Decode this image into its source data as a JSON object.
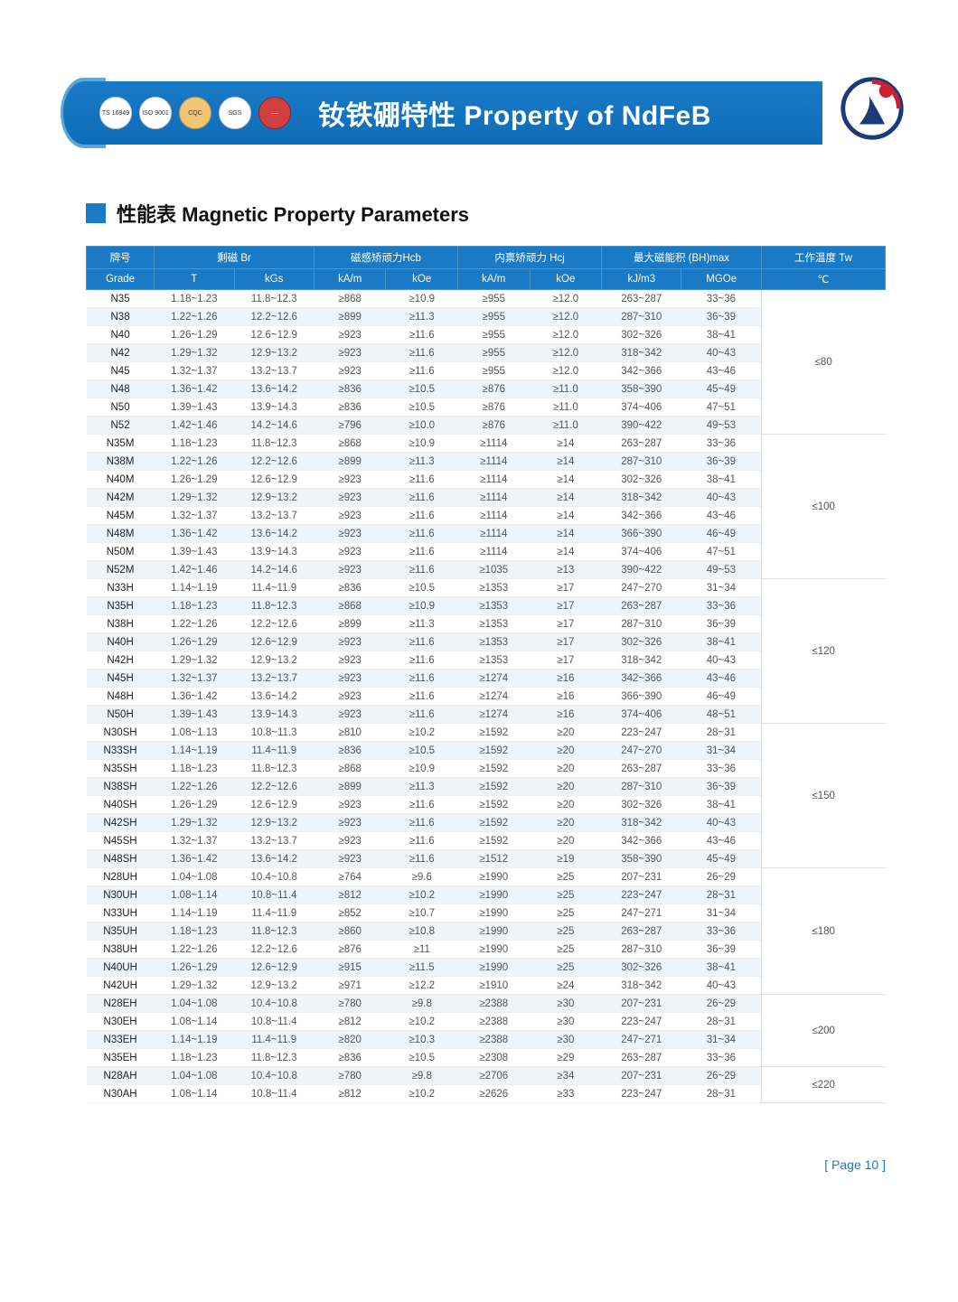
{
  "banner": {
    "title_cn": "钕铁硼特性",
    "title_en": "Property of NdFeB",
    "badges": [
      "TS 16949",
      "ISO 9001",
      "CQC",
      "SGS",
      "—"
    ]
  },
  "section_title_cn": "性能表",
  "section_title_en": "Magnetic Property Parameters",
  "footer": {
    "label": "Page",
    "number": "10"
  },
  "headers": {
    "grade_cn": "牌号",
    "grade_en": "Grade",
    "br_cn": "剩磁 Br",
    "t": "T",
    "kgs": "kGs",
    "hcb_cn": "磁感矫顽力Hcb",
    "kam": "kA/m",
    "koe": "kOe",
    "hcj_cn": "内禀矫顽力 Hcj",
    "bhmax_cn": "最大磁能积 (BH)max",
    "kjm3": "kJ/m3",
    "mgoe": "MGOe",
    "tw_cn": "工作温度 Tw",
    "celsius": "℃"
  },
  "groups": [
    {
      "tw": "≤80",
      "rows": [
        [
          "N35",
          "1.18~1.23",
          "11.8~12.3",
          "≥868",
          "≥10.9",
          "≥955",
          "≥12.0",
          "263~287",
          "33~36"
        ],
        [
          "N38",
          "1.22~1.26",
          "12.2~12.6",
          "≥899",
          "≥11.3",
          "≥955",
          "≥12.0",
          "287~310",
          "36~39"
        ],
        [
          "N40",
          "1.26~1.29",
          "12.6~12.9",
          "≥923",
          "≥11.6",
          "≥955",
          "≥12.0",
          "302~326",
          "38~41"
        ],
        [
          "N42",
          "1.29~1.32",
          "12.9~13.2",
          "≥923",
          "≥11.6",
          "≥955",
          "≥12.0",
          "318~342",
          "40~43"
        ],
        [
          "N45",
          "1.32~1.37",
          "13.2~13.7",
          "≥923",
          "≥11.6",
          "≥955",
          "≥12.0",
          "342~366",
          "43~46"
        ],
        [
          "N48",
          "1.36~1.42",
          "13.6~14.2",
          "≥836",
          "≥10.5",
          "≥876",
          "≥11.0",
          "358~390",
          "45~49"
        ],
        [
          "N50",
          "1.39~1.43",
          "13.9~14.3",
          "≥836",
          "≥10.5",
          "≥876",
          "≥11.0",
          "374~406",
          "47~51"
        ],
        [
          "N52",
          "1.42~1.46",
          "14.2~14.6",
          "≥796",
          "≥10.0",
          "≥876",
          "≥11.0",
          "390~422",
          "49~53"
        ]
      ]
    },
    {
      "tw": "≤100",
      "rows": [
        [
          "N35M",
          "1.18~1.23",
          "11.8~12.3",
          "≥868",
          "≥10.9",
          "≥1114",
          "≥14",
          "263~287",
          "33~36"
        ],
        [
          "N38M",
          "1.22~1.26",
          "12.2~12.6",
          "≥899",
          "≥11.3",
          "≥1114",
          "≥14",
          "287~310",
          "36~39"
        ],
        [
          "N40M",
          "1.26~1.29",
          "12.6~12.9",
          "≥923",
          "≥11.6",
          "≥1114",
          "≥14",
          "302~326",
          "38~41"
        ],
        [
          "N42M",
          "1.29~1.32",
          "12.9~13.2",
          "≥923",
          "≥11.6",
          "≥1114",
          "≥14",
          "318~342",
          "40~43"
        ],
        [
          "N45M",
          "1.32~1.37",
          "13.2~13.7",
          "≥923",
          "≥11.6",
          "≥1114",
          "≥14",
          "342~366",
          "43~46"
        ],
        [
          "N48M",
          "1.36~1.42",
          "13.6~14.2",
          "≥923",
          "≥11.6",
          "≥1114",
          "≥14",
          "366~390",
          "46~49"
        ],
        [
          "N50M",
          "1.39~1.43",
          "13.9~14.3",
          "≥923",
          "≥11.6",
          "≥1114",
          "≥14",
          "374~406",
          "47~51"
        ],
        [
          "N52M",
          "1.42~1.46",
          "14.2~14.6",
          "≥923",
          "≥11.6",
          "≥1035",
          "≥13",
          "390~422",
          "49~53"
        ]
      ]
    },
    {
      "tw": "≤120",
      "rows": [
        [
          "N33H",
          "1.14~1.19",
          "11.4~11.9",
          "≥836",
          "≥10.5",
          "≥1353",
          "≥17",
          "247~270",
          "31~34"
        ],
        [
          "N35H",
          "1.18~1.23",
          "11.8~12.3",
          "≥868",
          "≥10.9",
          "≥1353",
          "≥17",
          "263~287",
          "33~36"
        ],
        [
          "N38H",
          "1.22~1.26",
          "12.2~12.6",
          "≥899",
          "≥11.3",
          "≥1353",
          "≥17",
          "287~310",
          "36~39"
        ],
        [
          "N40H",
          "1.26~1.29",
          "12.6~12.9",
          "≥923",
          "≥11.6",
          "≥1353",
          "≥17",
          "302~326",
          "38~41"
        ],
        [
          "N42H",
          "1.29~1.32",
          "12.9~13.2",
          "≥923",
          "≥11.6",
          "≥1353",
          "≥17",
          "318~342",
          "40~43"
        ],
        [
          "N45H",
          "1.32~1.37",
          "13.2~13.7",
          "≥923",
          "≥11.6",
          "≥1274",
          "≥16",
          "342~366",
          "43~46"
        ],
        [
          "N48H",
          "1.36~1.42",
          "13.6~14.2",
          "≥923",
          "≥11.6",
          "≥1274",
          "≥16",
          "366~390",
          "46~49"
        ],
        [
          "N50H",
          "1.39~1.43",
          "13.9~14.3",
          "≥923",
          "≥11.6",
          "≥1274",
          "≥16",
          "374~406",
          "48~51"
        ]
      ]
    },
    {
      "tw": "≤150",
      "rows": [
        [
          "N30SH",
          "1.08~1.13",
          "10.8~11.3",
          "≥810",
          "≥10.2",
          "≥1592",
          "≥20",
          "223~247",
          "28~31"
        ],
        [
          "N33SH",
          "1.14~1.19",
          "11.4~11.9",
          "≥836",
          "≥10.5",
          "≥1592",
          "≥20",
          "247~270",
          "31~34"
        ],
        [
          "N35SH",
          "1.18~1.23",
          "11.8~12.3",
          "≥868",
          "≥10.9",
          "≥1592",
          "≥20",
          "263~287",
          "33~36"
        ],
        [
          "N38SH",
          "1.22~1.26",
          "12.2~12.6",
          "≥899",
          "≥11.3",
          "≥1592",
          "≥20",
          "287~310",
          "36~39"
        ],
        [
          "N40SH",
          "1.26~1.29",
          "12.6~12.9",
          "≥923",
          "≥11.6",
          "≥1592",
          "≥20",
          "302~326",
          "38~41"
        ],
        [
          "N42SH",
          "1.29~1.32",
          "12.9~13.2",
          "≥923",
          "≥11.6",
          "≥1592",
          "≥20",
          "318~342",
          "40~43"
        ],
        [
          "N45SH",
          "1.32~1.37",
          "13.2~13.7",
          "≥923",
          "≥11.6",
          "≥1592",
          "≥20",
          "342~366",
          "43~46"
        ],
        [
          "N48SH",
          "1.36~1.42",
          "13.6~14.2",
          "≥923",
          "≥11.6",
          "≥1512",
          "≥19",
          "358~390",
          "45~49"
        ]
      ]
    },
    {
      "tw": "≤180",
      "rows": [
        [
          "N28UH",
          "1.04~1.08",
          "10.4~10.8",
          "≥764",
          "≥9.6",
          "≥1990",
          "≥25",
          "207~231",
          "26~29"
        ],
        [
          "N30UH",
          "1.08~1.14",
          "10.8~11.4",
          "≥812",
          "≥10.2",
          "≥1990",
          "≥25",
          "223~247",
          "28~31"
        ],
        [
          "N33UH",
          "1.14~1.19",
          "11.4~11.9",
          "≥852",
          "≥10.7",
          "≥1990",
          "≥25",
          "247~271",
          "31~34"
        ],
        [
          "N35UH",
          "1.18~1.23",
          "11.8~12.3",
          "≥860",
          "≥10.8",
          "≥1990",
          "≥25",
          "263~287",
          "33~36"
        ],
        [
          "N38UH",
          "1.22~1.26",
          "12.2~12.6",
          "≥876",
          "≥11",
          "≥1990",
          "≥25",
          "287~310",
          "36~39"
        ],
        [
          "N40UH",
          "1.26~1.29",
          "12.6~12.9",
          "≥915",
          "≥11.5",
          "≥1990",
          "≥25",
          "302~326",
          "38~41"
        ],
        [
          "N42UH",
          "1.29~1.32",
          "12.9~13.2",
          "≥971",
          "≥12.2",
          "≥1910",
          "≥24",
          "318~342",
          "40~43"
        ]
      ]
    },
    {
      "tw": "≤200",
      "rows": [
        [
          "N28EH",
          "1.04~1.08",
          "10.4~10.8",
          "≥780",
          "≥9.8",
          "≥2388",
          "≥30",
          "207~231",
          "26~29"
        ],
        [
          "N30EH",
          "1.08~1.14",
          "10.8~11.4",
          "≥812",
          "≥10.2",
          "≥2388",
          "≥30",
          "223~247",
          "28~31"
        ],
        [
          "N33EH",
          "1.14~1.19",
          "11.4~11.9",
          "≥820",
          "≥10.3",
          "≥2388",
          "≥30",
          "247~271",
          "31~34"
        ],
        [
          "N35EH",
          "1.18~1.23",
          "11.8~12.3",
          "≥836",
          "≥10.5",
          "≥2308",
          "≥29",
          "263~287",
          "33~36"
        ]
      ]
    },
    {
      "tw": "≤220",
      "rows": [
        [
          "N28AH",
          "1.04~1.08",
          "10.4~10.8",
          "≥780",
          "≥9.8",
          "≥2706",
          "≥34",
          "207~231",
          "26~29"
        ],
        [
          "N30AH",
          "1.08~1.14",
          "10.8~11.4",
          "≥812",
          "≥10.2",
          "≥2626",
          "≥33",
          "223~247",
          "28~31"
        ]
      ]
    }
  ],
  "col_widths_pct": [
    8.5,
    10,
    10,
    9,
    9,
    9,
    9,
    10,
    10,
    15.5
  ],
  "colors": {
    "banner_blue": "#1a7ac5",
    "shade_bg": "#eef4fa"
  }
}
